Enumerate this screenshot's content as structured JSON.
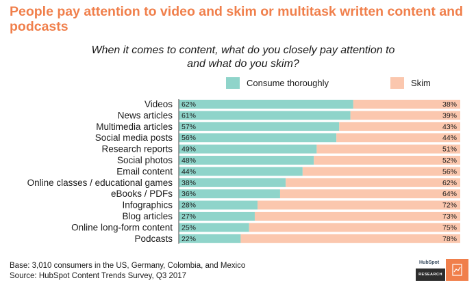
{
  "title": "People pay attention to video and skim or multitask written content and podcasts",
  "subtitle": "When it comes to content, what do you closely pay attention to and what do you skim?",
  "footer": {
    "base": "Base: 3,010 consumers in the US, Germany, Colombia, and Mexico",
    "source": "Source: HubSpot Content Trends Survey, Q3 2017"
  },
  "logo": {
    "brand": "HubSpot",
    "tag": "RESEARCH",
    "icon": "document-chart-icon"
  },
  "colors": {
    "title": "#f07f4b",
    "consume": "#8fd4ca",
    "skim": "#fbc7ae",
    "logo_orange": "#f07f4b",
    "logo_dark": "#2d2d2d"
  },
  "chart_data": {
    "type": "bar",
    "orientation": "horizontal",
    "stacked": true,
    "percent": true,
    "title": "When it comes to content, what do you closely pay attention to and what do you skim?",
    "categories": [
      "Videos",
      "News articles",
      "Multimedia articles",
      "Social media posts",
      "Research reports",
      "Social photos",
      "Email content",
      "Online classes / educational games",
      "eBooks / PDFs",
      "Infographics",
      "Blog articles",
      "Online long-form content ",
      "Podcasts"
    ],
    "series": [
      {
        "name": "Consume thoroughly",
        "values": [
          62,
          61,
          57,
          56,
          49,
          48,
          44,
          38,
          36,
          28,
          27,
          25,
          22
        ]
      },
      {
        "name": "Skim",
        "values": [
          38,
          39,
          43,
          44,
          51,
          52,
          56,
          62,
          64,
          72,
          73,
          75,
          78
        ]
      }
    ],
    "xlim": [
      0,
      100
    ],
    "grid": false,
    "legend": "top",
    "data_label_suffix": "%"
  }
}
